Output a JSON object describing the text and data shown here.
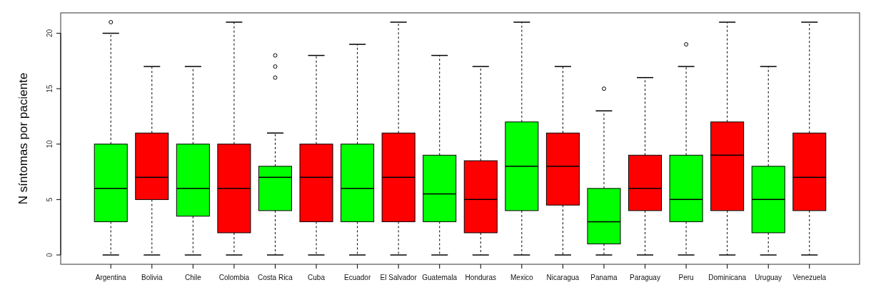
{
  "chart_data": {
    "type": "box",
    "ylabel": "N síntomas por paciente",
    "categories": [
      "Argentina",
      "Bolivia",
      "Chile",
      "Colombia",
      "Costa Rica",
      "Cuba",
      "Ecuador",
      "El Salvador",
      "Guatemala",
      "Honduras",
      "Mexico",
      "Nicaragua",
      "Panama",
      "Paraguay",
      "Peru",
      "Dominicana",
      "Uruguay",
      "Venezuela"
    ],
    "colors": [
      "#00ff00",
      "#ff0000",
      "#00ff00",
      "#ff0000",
      "#00ff00",
      "#ff0000",
      "#00ff00",
      "#ff0000",
      "#00ff00",
      "#ff0000",
      "#00ff00",
      "#ff0000",
      "#00ff00",
      "#ff0000",
      "#00ff00",
      "#ff0000",
      "#00ff00",
      "#ff0000"
    ],
    "boxes": [
      {
        "low": 0,
        "q1": 3,
        "median": 6,
        "q3": 10,
        "high": 20,
        "outliers": [
          21
        ]
      },
      {
        "low": 0,
        "q1": 5,
        "median": 7,
        "q3": 11,
        "high": 17
      },
      {
        "low": 0,
        "q1": 3.5,
        "median": 6,
        "q3": 10,
        "high": 17
      },
      {
        "low": 0,
        "q1": 2,
        "median": 6,
        "q3": 10,
        "high": 21
      },
      {
        "low": 0,
        "q1": 4,
        "median": 7,
        "q3": 8,
        "high": 11,
        "outliers": [
          16,
          17,
          18
        ]
      },
      {
        "low": 0,
        "q1": 3,
        "median": 7,
        "q3": 10,
        "high": 18
      },
      {
        "low": 0,
        "q1": 3,
        "median": 6,
        "q3": 10,
        "high": 19
      },
      {
        "low": 0,
        "q1": 3,
        "median": 7,
        "q3": 11,
        "high": 21
      },
      {
        "low": 0,
        "q1": 3,
        "median": 5.5,
        "q3": 9,
        "high": 18
      },
      {
        "low": 0,
        "q1": 2,
        "median": 5,
        "q3": 8.5,
        "high": 17
      },
      {
        "low": 0,
        "q1": 4,
        "median": 8,
        "q3": 12,
        "high": 21
      },
      {
        "low": 0,
        "q1": 4.5,
        "median": 8,
        "q3": 11,
        "high": 17
      },
      {
        "low": 0,
        "q1": 1,
        "median": 3,
        "q3": 6,
        "high": 13,
        "outliers": [
          15
        ]
      },
      {
        "low": 0,
        "q1": 4,
        "median": 6,
        "q3": 9,
        "high": 16
      },
      {
        "low": 0,
        "q1": 3,
        "median": 5,
        "q3": 9,
        "high": 17,
        "outliers": [
          19
        ]
      },
      {
        "low": 0,
        "q1": 4,
        "median": 9,
        "q3": 12,
        "high": 21
      },
      {
        "low": 0,
        "q1": 2,
        "median": 5,
        "q3": 8,
        "high": 17
      },
      {
        "low": 0,
        "q1": 4,
        "median": 7,
        "q3": 11,
        "high": 21
      }
    ],
    "ylim": [
      -0.84,
      21.84
    ],
    "yticks": [
      0,
      5,
      10,
      15,
      20
    ],
    "grid": false
  }
}
